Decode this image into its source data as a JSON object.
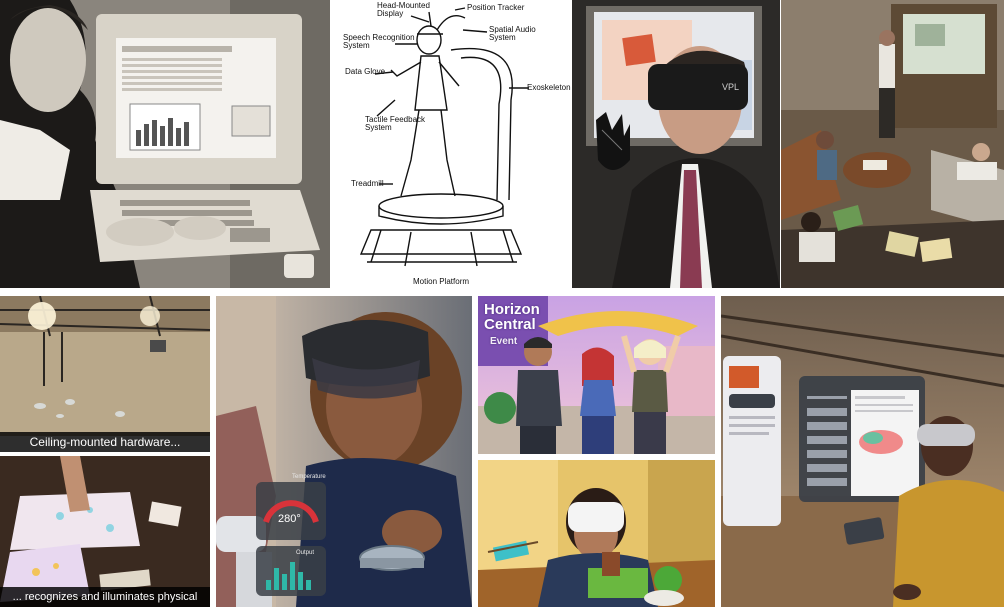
{
  "diagram_labels": {
    "head_mounted_display": "Head-Mounted\nDisplay",
    "position_tracker": "Position Tracker",
    "spatial_audio": "Spatial Audio\nSystem",
    "speech_recognition": "Speech Recognition\nSystem",
    "data_glove": "Data Glove",
    "exoskeleton": "Exoskeleton",
    "tactile_feedback": "Tactile Feedback\nSystem",
    "treadmill": "Treadmill",
    "motion_platform": "Motion Platform"
  },
  "projection_captions": {
    "top": "Ceiling-mounted hardware...",
    "bottom": "... recognizes and illuminates physical objects."
  },
  "horizon_sign": {
    "line1": "Horizon",
    "line2": "Central",
    "line3": "Event"
  },
  "hud": {
    "temperature_label": "Temperature",
    "temperature_value": "280°",
    "output_label": "Output"
  },
  "colors": {
    "sepia_dark": "#2a2724",
    "sepia_light": "#d9d4cc",
    "horizon_purple": "#7a4fb0",
    "hud_red": "#d8333a",
    "hud_teal": "#2fb8a8",
    "glass_panel": "#3a3f47"
  }
}
